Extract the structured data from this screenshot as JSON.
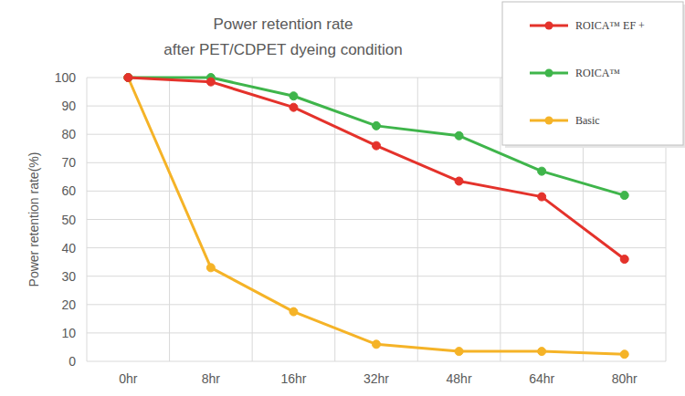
{
  "chart_data": {
    "type": "line",
    "title": "Power retention rate",
    "subtitle": "after PET/CDPET dyeing condition",
    "y_label": "Power retention rate(%)",
    "categories": [
      "0hr",
      "8hr",
      "16hr",
      "32hr",
      "48hr",
      "64hr",
      "80hr"
    ],
    "series": [
      {
        "name": "ROICA™ EF +",
        "color": "#e4322b",
        "marker": "circle",
        "line_style": "solid",
        "values": [
          100,
          98.5,
          89.5,
          76,
          63.5,
          58,
          36
        ]
      },
      {
        "name": "ROICA™",
        "color": "#3fb54b",
        "marker": "circle",
        "line_style": "solid",
        "values": [
          100,
          100,
          93.5,
          83,
          79.5,
          67,
          58.5
        ]
      },
      {
        "name": "Basic",
        "color": "#f5b327",
        "marker": "circle",
        "line_style": "solid",
        "values": [
          100,
          33,
          17.5,
          6,
          3.5,
          3.5,
          2.5
        ]
      }
    ],
    "ylim": [
      0,
      100
    ],
    "yticks": [
      0,
      10,
      20,
      30,
      40,
      50,
      60,
      70,
      80,
      90,
      100
    ],
    "grid": true,
    "legend": "upper right"
  }
}
